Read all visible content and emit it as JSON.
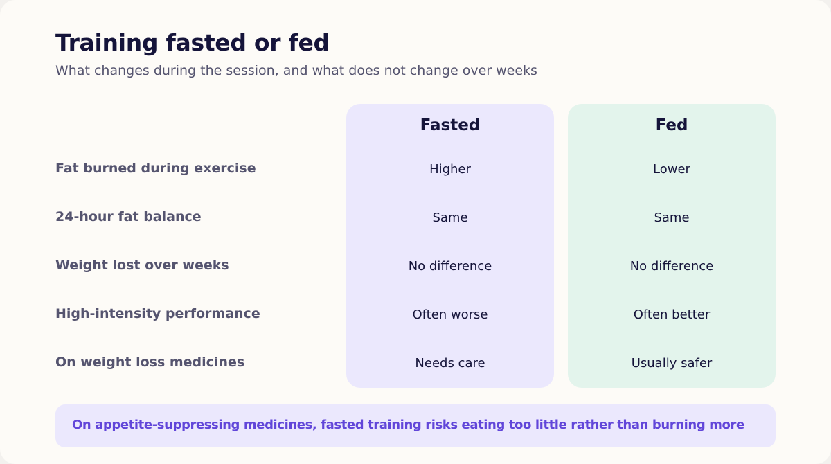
{
  "title": "Training fasted or fed",
  "subtitle": "What changes during the session, and what does not change over weeks",
  "columns": [
    "Fasted",
    "Fed"
  ],
  "rows": [
    {
      "label": "Fat burned during exercise",
      "fasted": "Higher",
      "fed": "Lower"
    },
    {
      "label": "24-hour fat balance",
      "fasted": "Same",
      "fed": "Same"
    },
    {
      "label": "Weight lost over weeks",
      "fasted": "No difference",
      "fed": "No difference"
    },
    {
      "label": "High-intensity performance",
      "fasted": "Often worse",
      "fed": "Often better"
    },
    {
      "label": "On weight loss medicines",
      "fasted": "Needs care",
      "fed": "Usually safer"
    }
  ],
  "callout": "On appetite-suppressing medicines, fasted training risks eating too little rather than burning more",
  "colors": {
    "fasted_bg": "#ebe8fd",
    "fed_bg": "#e3f4ec",
    "callout_text": "#6146d9"
  }
}
